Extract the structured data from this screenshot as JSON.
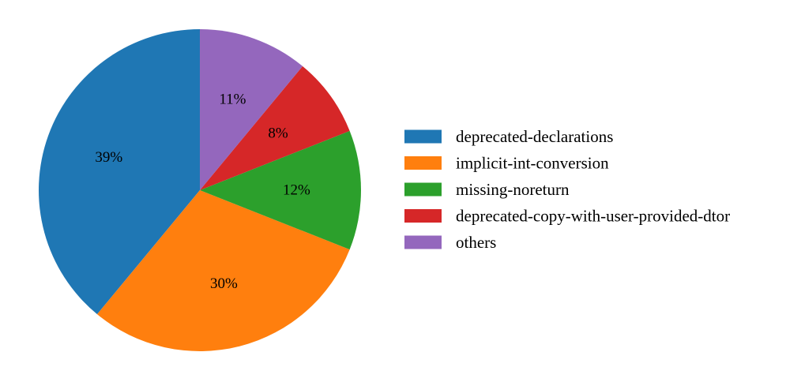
{
  "chart_data": {
    "type": "pie",
    "start_angle_deg": 90,
    "direction": "counterclockwise",
    "legend_position": "right",
    "slices": [
      {
        "label": "deprecated-declarations",
        "value": 39,
        "display": "39%",
        "color": "#1f77b4"
      },
      {
        "label": "implicit-int-conversion",
        "value": 30,
        "display": "30%",
        "color": "#ff7f0e"
      },
      {
        "label": "missing-noreturn",
        "value": 12,
        "display": "12%",
        "color": "#2ca02c"
      },
      {
        "label": "deprecated-copy-with-user-provided-dtor",
        "value": 8,
        "display": "8%",
        "color": "#d62728"
      },
      {
        "label": "others",
        "value": 11,
        "display": "11%",
        "color": "#9467bd"
      }
    ]
  }
}
